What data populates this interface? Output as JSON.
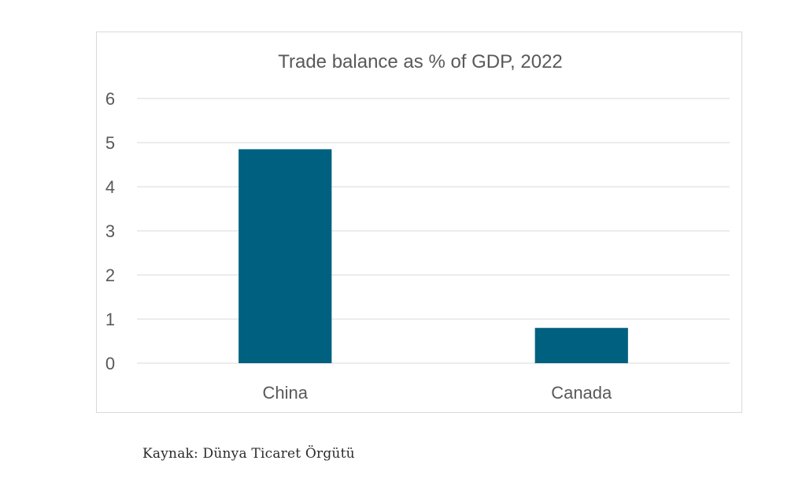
{
  "chart_data": {
    "type": "bar",
    "title": "Trade balance as % of GDP, 2022",
    "xlabel": "",
    "ylabel": "",
    "categories": [
      "China",
      "Canada"
    ],
    "values": [
      4.85,
      0.8
    ],
    "ylim": [
      0,
      6
    ],
    "yticks": [
      "0",
      "1",
      "2",
      "3",
      "4",
      "5",
      "6"
    ],
    "grid": true,
    "legend": "none",
    "bar_color": "#006080",
    "grid_color": "#d9d9d9",
    "text_color": "#595959"
  },
  "source_note": "Kaynak: Dünya Ticaret Örgütü"
}
